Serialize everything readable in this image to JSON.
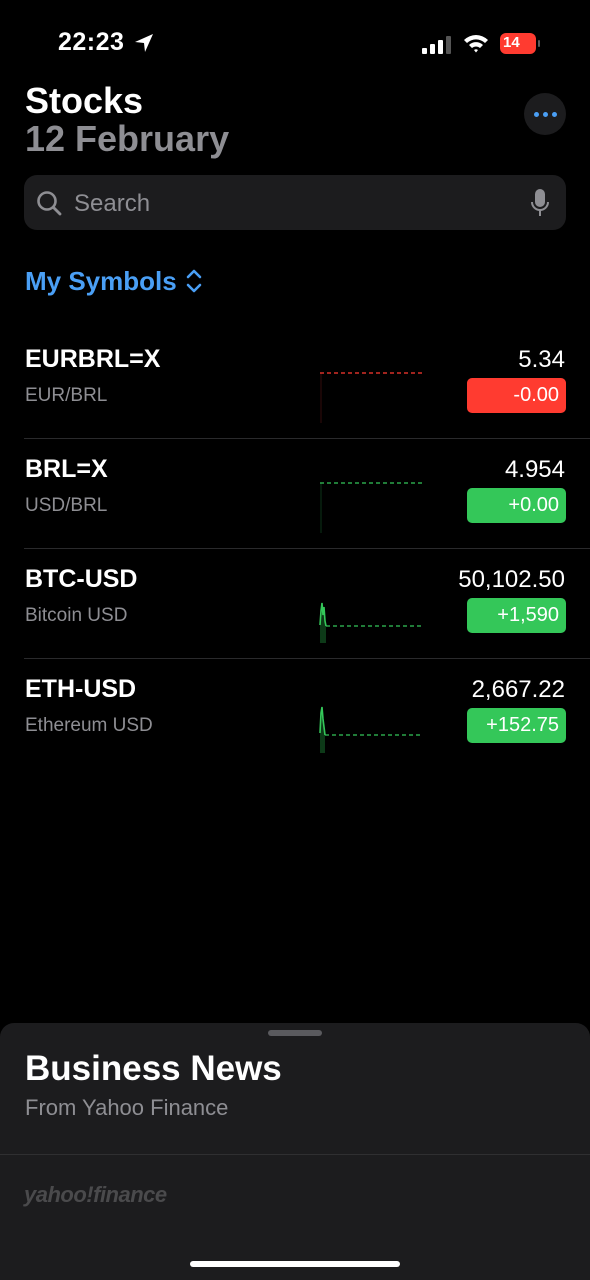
{
  "status": {
    "time": "22:23",
    "battery": "14"
  },
  "header": {
    "title": "Stocks",
    "date": "12 February"
  },
  "search": {
    "placeholder": "Search"
  },
  "watchlist": {
    "label": "My Symbols"
  },
  "stocks": [
    {
      "symbol": "EURBRL=X",
      "name": "EUR/BRL",
      "price": "5.34",
      "change": "-0.00",
      "direction": "down"
    },
    {
      "symbol": "BRL=X",
      "name": "USD/BRL",
      "price": "4.954",
      "change": "+0.00",
      "direction": "up"
    },
    {
      "symbol": "BTC-USD",
      "name": "Bitcoin USD",
      "price": "50,102.50",
      "change": "+1,590",
      "direction": "up"
    },
    {
      "symbol": "ETH-USD",
      "name": "Ethereum USD",
      "price": "2,667.22",
      "change": "+152.75",
      "direction": "up"
    }
  ],
  "news": {
    "title": "Business News",
    "source": "From Yahoo Finance",
    "logo_text": "yahoo!finance"
  },
  "colors": {
    "accent": "#4a9ff5",
    "negative": "#ff3b30",
    "positive": "#34c759"
  }
}
